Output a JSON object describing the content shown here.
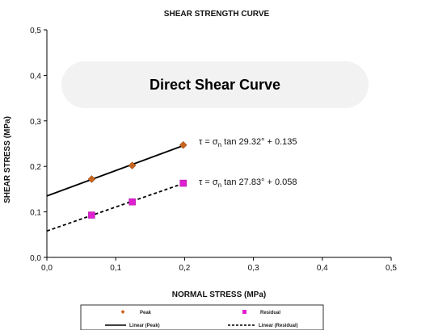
{
  "chart_data": {
    "type": "scatter",
    "title": "SHEAR STRENGTH CURVE",
    "banner": "Direct Shear Curve",
    "xlabel": "NORMAL STRESS (MPa)",
    "ylabel": "SHEAR STRESS (MPa)",
    "xlim": [
      0,
      0.5
    ],
    "ylim": [
      0,
      0.5
    ],
    "x_ticks": [
      "0,0",
      "0,1",
      "0,2",
      "0,3",
      "0,4",
      "0,5"
    ],
    "y_ticks": [
      "0,0",
      "0,1",
      "0,2",
      "0,3",
      "0,4",
      "0,5"
    ],
    "grid": false,
    "legend_position": "bottom",
    "series": [
      {
        "name": "Peak",
        "marker": "diamond",
        "color": "#c8641e",
        "x": [
          0.065,
          0.124,
          0.198
        ],
        "y": [
          0.172,
          0.202,
          0.247
        ],
        "trendline": {
          "name": "Linear (Peak)",
          "style": "solid",
          "intercept": 0.135,
          "x_range": [
            0.0,
            0.198
          ],
          "equation_prefix": "τ = σ",
          "equation_sub": "n",
          "equation_suffix": " tan 29.32° + 0.135"
        }
      },
      {
        "name": "Residual",
        "marker": "square",
        "color": "#e020d0",
        "x": [
          0.065,
          0.124,
          0.198
        ],
        "y": [
          0.093,
          0.122,
          0.163
        ],
        "trendline": {
          "name": "Linear (Residual)",
          "style": "dashed",
          "intercept": 0.058,
          "x_range": [
            0.0,
            0.198
          ],
          "equation_prefix": "τ = σ",
          "equation_sub": "n",
          "equation_suffix": " tan 27.83° + 0.058"
        }
      }
    ]
  }
}
